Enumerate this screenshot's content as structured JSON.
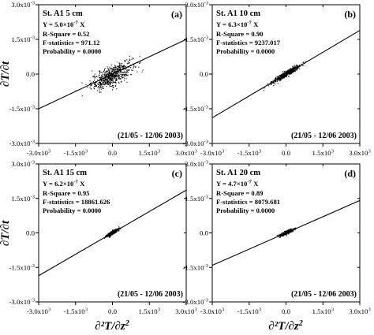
{
  "axis_labels": {
    "x_text": "∂²T/∂z",
    "x_sup": "2",
    "y_text": "∂T/∂t"
  },
  "chart_data": [
    {
      "type": "scatter",
      "station": "St. A1 5 cm",
      "panel_label": "(a)",
      "equation_prefix": "Y = 5.0×10",
      "equation_exp": "-7",
      "equation_suffix": "X",
      "slope": 5e-07,
      "r_square": "R-Square = 0.52",
      "f_statistics": "F-statistics = 971.12",
      "probability": "Probability = 0.0000",
      "date_range": "(21/05 - 12/06 2003)",
      "xlim": [
        -3000,
        3000
      ],
      "ylim": [
        -0.003,
        0.003
      ],
      "x_ticks": [
        {
          "m": "-3.0x10",
          "e": "3"
        },
        {
          "m": "-1.5x10",
          "e": "3"
        },
        {
          "m": "0.0",
          "e": ""
        },
        {
          "m": "1.5x10",
          "e": "3"
        },
        {
          "m": "3.0x10",
          "e": "3"
        }
      ],
      "y_ticks": [
        {
          "m": "3.0x10",
          "e": "-3"
        },
        {
          "m": "1.5x10",
          "e": "-3"
        },
        {
          "m": "0.0",
          "e": ""
        },
        {
          "m": "-1.5x10",
          "e": "-3"
        },
        {
          "m": "-3.0x10",
          "e": "-3"
        }
      ],
      "point_cloud": {
        "count": 650,
        "x_spread": 420,
        "y_spread": 0.00022,
        "x_center": -20,
        "y_center": -5e-05
      }
    },
    {
      "type": "scatter",
      "station": "St. A1 10 cm",
      "panel_label": "(b)",
      "equation_prefix": "Y = 6.3×10",
      "equation_exp": "-7",
      "equation_suffix": "X",
      "slope": 6.3e-07,
      "r_square": "R-Square = 0.90",
      "f_statistics": "F-statistics = 9237.017",
      "probability": "Probability = 0.0000",
      "date_range": "(21/05 - 12/06 2003)",
      "xlim": [
        -3000,
        3000
      ],
      "ylim": [
        -0.003,
        0.003
      ],
      "x_ticks": [
        {
          "m": "-3.0x10",
          "e": "3"
        },
        {
          "m": "-1.5x10",
          "e": "3"
        },
        {
          "m": "0.0",
          "e": ""
        },
        {
          "m": "1.5x10",
          "e": "3"
        },
        {
          "m": "3.0x10",
          "e": "3"
        }
      ],
      "y_ticks": [
        {
          "m": "3.0x10",
          "e": "-3"
        },
        {
          "m": "1.5x10",
          "e": "-3"
        },
        {
          "m": "0.0",
          "e": ""
        },
        {
          "m": "-1.5x10",
          "e": "-3"
        },
        {
          "m": "-3.0x10",
          "e": "-3"
        }
      ],
      "point_cloud": {
        "count": 550,
        "x_spread": 280,
        "y_spread": 6e-05,
        "x_center": 0,
        "y_center": 0
      }
    },
    {
      "type": "scatter",
      "station": "St. A1 15 cm",
      "panel_label": "(c)",
      "equation_prefix": "Y = 6.2×10",
      "equation_exp": "-7",
      "equation_suffix": "X",
      "slope": 6.2e-07,
      "r_square": "R-Square = 0.95",
      "f_statistics": "F-statistics = 18861.626",
      "probability": "Probability = 0.0000",
      "date_range": "(21/05 - 12/06 2003)",
      "xlim": [
        -3000,
        3000
      ],
      "ylim": [
        -0.003,
        0.003
      ],
      "x_ticks": [
        {
          "m": "-3.0x10",
          "e": "3"
        },
        {
          "m": "-1.5x10",
          "e": "3"
        },
        {
          "m": "0.0",
          "e": ""
        },
        {
          "m": "1.5x10",
          "e": "3"
        },
        {
          "m": "3.0x10",
          "e": "3"
        }
      ],
      "y_ticks": [
        {
          "m": "3.0x10",
          "e": "-3"
        },
        {
          "m": "1.5x10",
          "e": "-3"
        },
        {
          "m": "0.0",
          "e": ""
        },
        {
          "m": "-1.5x10",
          "e": "-3"
        },
        {
          "m": "-3.0x10",
          "e": "-3"
        }
      ],
      "point_cloud": {
        "count": 380,
        "x_spread": 130,
        "y_spread": 4e-05,
        "x_center": 20,
        "y_center": 0
      }
    },
    {
      "type": "scatter",
      "station": "St. A1 20 cm",
      "panel_label": "(d)",
      "equation_prefix": "Y = 4.7×10",
      "equation_exp": "-7",
      "equation_suffix": "X",
      "slope": 4.7e-07,
      "r_square": "R-Square = 0.89",
      "f_statistics": "F-statistics = 8079.681",
      "probability": "Probability = 0.0000",
      "date_range": "(21/05 - 12/06 2003)",
      "xlim": [
        -3000,
        3000
      ],
      "ylim": [
        -0.003,
        0.003
      ],
      "x_ticks": [
        {
          "m": "-3.0x10",
          "e": "3"
        },
        {
          "m": "-1.5x10",
          "e": "3"
        },
        {
          "m": "0.0",
          "e": ""
        },
        {
          "m": "1.5x10",
          "e": "3"
        },
        {
          "m": "3.0x10",
          "e": "3"
        }
      ],
      "y_ticks": [
        {
          "m": "3.0x10",
          "e": "-3"
        },
        {
          "m": "1.5x10",
          "e": "-3"
        },
        {
          "m": "0.0",
          "e": ""
        },
        {
          "m": "-1.5x10",
          "e": "-3"
        },
        {
          "m": "-3.0x10",
          "e": "-3"
        }
      ],
      "point_cloud": {
        "count": 360,
        "x_spread": 150,
        "y_spread": 4e-05,
        "x_center": 10,
        "y_center": 0
      }
    }
  ]
}
